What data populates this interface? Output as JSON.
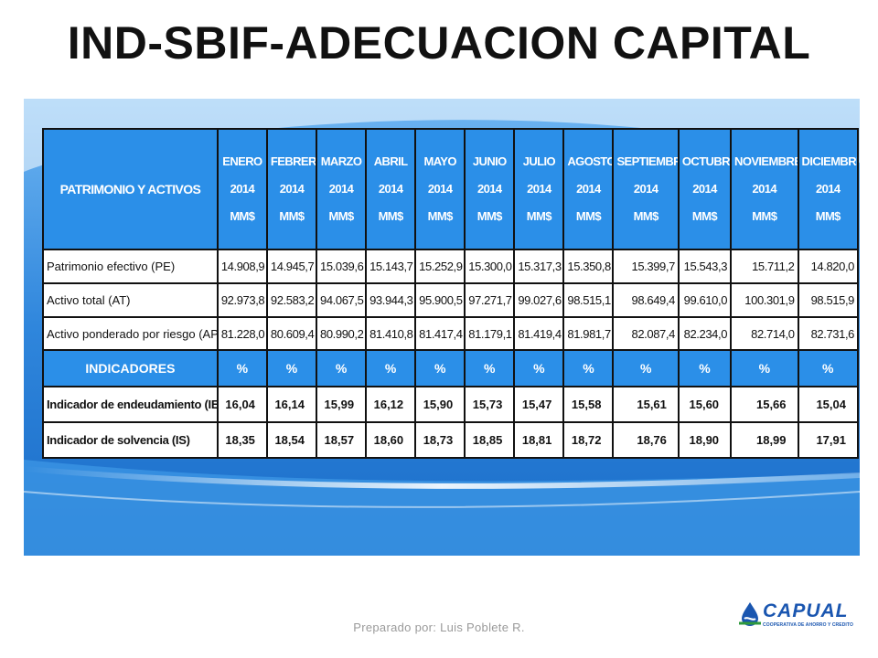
{
  "slide": {
    "title": "IND-SBIF-ADECUACION CAPITAL",
    "footer": "Preparado por: Luis Poblete R."
  },
  "table": {
    "corner_label": "PATRIMONIO Y ACTIVOS",
    "months": [
      {
        "month": "ENERO",
        "year": "2014",
        "unit": "MM$"
      },
      {
        "month": "FEBRERO",
        "year": "2014",
        "unit": "MM$"
      },
      {
        "month": "MARZO",
        "year": "2014",
        "unit": "MM$"
      },
      {
        "month": "ABRIL",
        "year": "2014",
        "unit": "MM$"
      },
      {
        "month": "MAYO",
        "year": "2014",
        "unit": "MM$"
      },
      {
        "month": "JUNIO",
        "year": "2014",
        "unit": "MM$"
      },
      {
        "month": "JULIO",
        "year": "2014",
        "unit": "MM$"
      },
      {
        "month": "AGOSTO",
        "year": "2014",
        "unit": "MM$"
      },
      {
        "month": "SEPTIEMBRE",
        "year": "2014",
        "unit": "MM$"
      },
      {
        "month": "OCTUBRE",
        "year": "2014",
        "unit": "MM$"
      },
      {
        "month": "NOVIEMBRE",
        "year": "2014",
        "unit": "MM$"
      },
      {
        "month": "DICIEMBRE",
        "year": "2014",
        "unit": "MM$"
      }
    ],
    "rows": [
      {
        "label": "Patrimonio efectivo (PE)",
        "values": [
          "14.908,9",
          "14.945,7",
          "15.039,6",
          "15.143,7",
          "15.252,9",
          "15.300,0",
          "15.317,3",
          "15.350,8",
          "15.399,7",
          "15.543,3",
          "15.711,2",
          "14.820,0"
        ]
      },
      {
        "label": "Activo total (AT)",
        "values": [
          "92.973,8",
          "92.583,2",
          "94.067,5",
          "93.944,3",
          "95.900,5",
          "97.271,7",
          "99.027,6",
          "98.515,1",
          "98.649,4",
          "99.610,0",
          "100.301,9",
          "98.515,9"
        ]
      },
      {
        "label": "Activo ponderado por riesgo (AP)",
        "values": [
          "81.228,0",
          "80.609,4",
          "80.990,2",
          "81.410,8",
          "81.417,4",
          "81.179,1",
          "81.419,4",
          "81.981,7",
          "82.087,4",
          "82.234,0",
          "82.714,0",
          "82.731,6"
        ]
      }
    ],
    "indicators_label": "INDICADORES",
    "indicator_units": [
      "%",
      "%",
      "%",
      "%",
      "%",
      "%",
      "%",
      "%",
      "%",
      "%",
      "%",
      "%"
    ],
    "indicators": [
      {
        "label": "Indicador de endeudamiento (IE)",
        "values": [
          "16,04",
          "16,14",
          "15,99",
          "16,12",
          "15,90",
          "15,73",
          "15,47",
          "15,58",
          "15,61",
          "15,60",
          "15,66",
          "15,04"
        ]
      },
      {
        "label": "Indicador de solvencia (IS)",
        "values": [
          "18,35",
          "18,54",
          "18,57",
          "18,60",
          "18,73",
          "18,85",
          "18,81",
          "18,72",
          "18,76",
          "18,90",
          "18,99",
          "17,91"
        ]
      }
    ]
  },
  "logo": {
    "name": "CAPUAL",
    "tagline": "COOPERATIVA DE AHORRO Y CREDITO"
  },
  "colors": {
    "header_blue": "#2b8fe8",
    "background_blue": "#2f86dc",
    "logo_blue": "#1a56b0"
  }
}
